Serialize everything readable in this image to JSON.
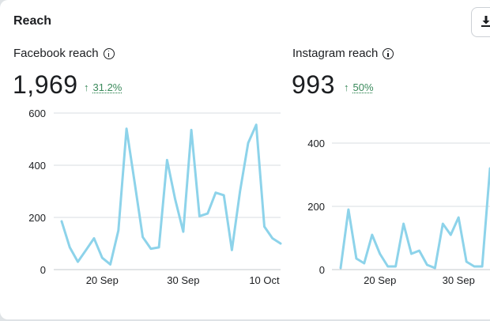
{
  "card": {
    "title": "Reach",
    "download_icon": "download-icon"
  },
  "colors": {
    "line": "#8dd3ea",
    "grid": "#dadde1",
    "positive": "#3a8a5b"
  },
  "facebook": {
    "label": "Facebook reach",
    "total": "1,969",
    "change": "31.2%",
    "change_direction": "up"
  },
  "instagram": {
    "label": "Instagram reach",
    "total": "993",
    "change": "50%",
    "change_direction": "up"
  },
  "chart_data": [
    {
      "type": "line",
      "title": "Facebook reach",
      "ylim": [
        0,
        600
      ],
      "yticks": [
        0,
        200,
        400,
        600
      ],
      "xtick_labels": [
        "20 Sep",
        "30 Sep",
        "10 Oct"
      ],
      "xtick_indices": [
        5,
        15,
        25
      ],
      "series": [
        {
          "values": [
            185,
            85,
            30,
            75,
            120,
            45,
            20,
            150,
            540,
            335,
            125,
            80,
            85,
            420,
            270,
            145,
            535,
            205,
            215,
            295,
            285,
            75,
            300,
            485,
            555,
            165,
            120,
            100
          ]
        }
      ]
    },
    {
      "type": "line",
      "title": "Instagram reach",
      "ylim": [
        0,
        400
      ],
      "yticks": [
        0,
        200,
        400
      ],
      "xtick_labels": [
        "20 Sep",
        "30 Sep"
      ],
      "xtick_indices": [
        5,
        15
      ],
      "series": [
        {
          "values": [
            5,
            190,
            35,
            20,
            110,
            50,
            10,
            10,
            145,
            50,
            60,
            15,
            5,
            145,
            110,
            165,
            25,
            10,
            10,
            320
          ]
        }
      ]
    }
  ]
}
